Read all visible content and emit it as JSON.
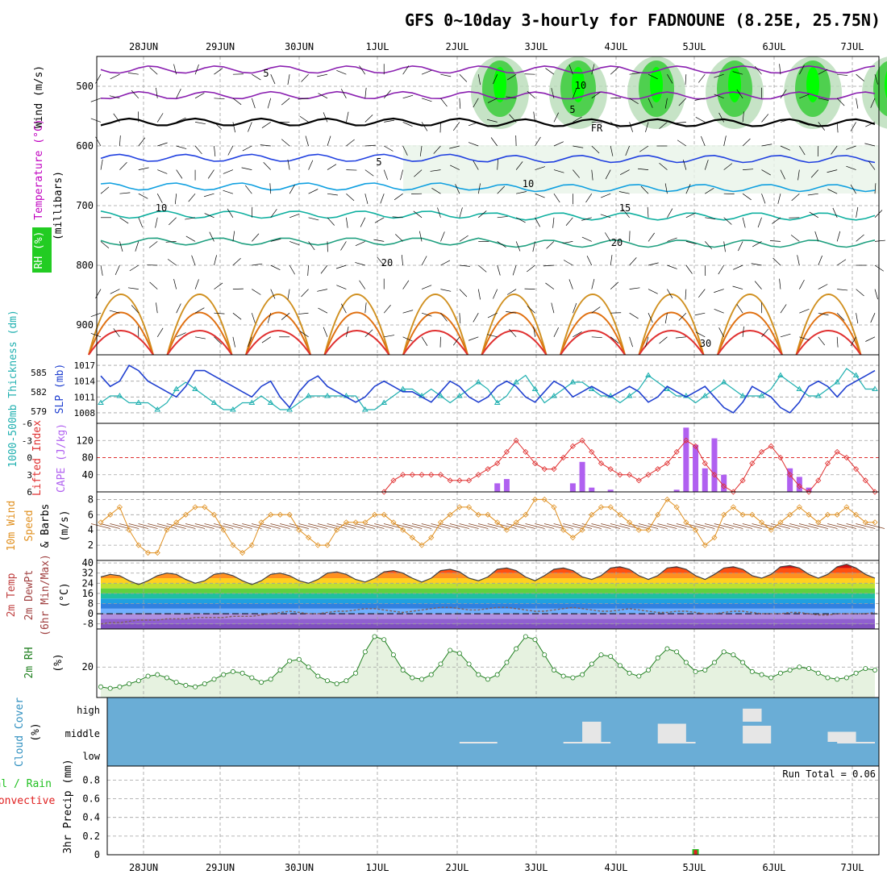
{
  "title": "GFS 0~10day 3-hourly for FADNOUNE (8.25E, 25.75N)",
  "colors": {
    "frame": "#000000",
    "grid": "#a0a0a0",
    "wind_label": "#000000",
    "temp_label": "#c000c0",
    "rh_label": "#00a000",
    "thickness": "#20b0b0",
    "slp": "#2040d0",
    "lifted_index": "#e03030",
    "cape": "#b060f0",
    "wind10m": "#e09020",
    "barb": "#804020",
    "rh2m": "#208020",
    "rh2m_fill": "#e6f2e0",
    "cloud_bg": "#6aadd6",
    "cloud_fill": "#e6e6e6",
    "precip_total": "#20c020",
    "precip_conv": "#e02020"
  },
  "chart_data": [
    {
      "type": "heatmap",
      "id": "upper-air",
      "y_axis_label": [
        "Wind (m/s)",
        "Temperature (°C)",
        "RH (%)"
      ],
      "y_axis_sublabel": "(millibars)",
      "yticks": [
        500,
        600,
        700,
        800,
        900
      ],
      "ylim": [
        450,
        950
      ],
      "date_labels": [
        "28JUN",
        "29JUN",
        "30JUN",
        "1JUL",
        "2JUL",
        "3JUL",
        "4JUL",
        "5JUL",
        "6JUL",
        "7JUL"
      ],
      "contour_labels": [
        "5",
        "10",
        "5",
        "FR",
        "5",
        "10",
        "10",
        "15",
        "20",
        "20",
        "30"
      ],
      "temperature_contours": [
        {
          "value": -5,
          "color": "#8a1fb0",
          "level": 472
        },
        {
          "value": -10,
          "color": "#8a1fb0",
          "level": 515
        },
        {
          "value": 0,
          "color": "#000000",
          "level": 560
        },
        {
          "value": 5,
          "color": "#2040e0",
          "level": 620
        },
        {
          "value": 10,
          "color": "#10a0e0",
          "level": 668
        },
        {
          "value": 15,
          "color": "#10b0a0",
          "level": 715
        },
        {
          "value": 20,
          "color": "#20a080",
          "level": 760
        }
      ]
    },
    {
      "type": "line",
      "id": "thickness-slp",
      "ylabel_left": "1000-500mb Thickness (dm)",
      "ylabel_right": "SLP (mb)",
      "thickness_ticks": [
        585,
        582,
        579
      ],
      "slp_ticks": [
        1017,
        1014,
        1011,
        1008
      ],
      "ylim_slp": [
        1006,
        1019
      ],
      "series": [
        {
          "name": "Thickness",
          "values": [
            580,
            581,
            581,
            580,
            580,
            580,
            579,
            580,
            582,
            583,
            582,
            581,
            580,
            579,
            579,
            580,
            580,
            581,
            580,
            579,
            579,
            580,
            581,
            581,
            581,
            581,
            581,
            581,
            579,
            579,
            580,
            581,
            582,
            582,
            581,
            582,
            581,
            580,
            581,
            582,
            583,
            582,
            580,
            581,
            583,
            584,
            582,
            580,
            581,
            582,
            583,
            583,
            582,
            581,
            581,
            580,
            581,
            582,
            584,
            583,
            582,
            581,
            581,
            580,
            581,
            582,
            583,
            582,
            581,
            581,
            581,
            582,
            584,
            583,
            582,
            581,
            581,
            582,
            583,
            585,
            584,
            582,
            582
          ]
        },
        {
          "name": "SLP",
          "values": [
            1015,
            1013,
            1014,
            1017,
            1016,
            1014,
            1013,
            1012,
            1011,
            1013,
            1016,
            1016,
            1015,
            1014,
            1013,
            1012,
            1011,
            1013,
            1014,
            1011,
            1009,
            1012,
            1014,
            1015,
            1013,
            1012,
            1011,
            1010,
            1011,
            1013,
            1014,
            1013,
            1012,
            1012,
            1011,
            1010,
            1012,
            1014,
            1013,
            1011,
            1010,
            1011,
            1013,
            1014,
            1013,
            1011,
            1010,
            1012,
            1014,
            1013,
            1011,
            1012,
            1013,
            1012,
            1011,
            1012,
            1013,
            1012,
            1010,
            1011,
            1013,
            1012,
            1011,
            1012,
            1013,
            1011,
            1009,
            1008,
            1010,
            1013,
            1012,
            1011,
            1009,
            1008,
            1010,
            1013,
            1014,
            1013,
            1011,
            1013,
            1014,
            1015,
            1016
          ]
        }
      ]
    },
    {
      "type": "bar",
      "id": "cape-li",
      "ylabel_left": "Lifted Index",
      "ylabel_right": "CAPE (J/kg)",
      "li_ticks": [
        -6,
        -3,
        0,
        3,
        6
      ],
      "cape_ticks": [
        120,
        80,
        40
      ],
      "ylim_cape": [
        0,
        160
      ],
      "li_values": [
        null,
        null,
        null,
        null,
        null,
        null,
        null,
        null,
        null,
        null,
        null,
        null,
        null,
        null,
        null,
        null,
        null,
        null,
        null,
        null,
        null,
        null,
        null,
        null,
        null,
        null,
        null,
        null,
        null,
        null,
        6,
        4,
        3,
        3,
        3,
        3,
        3,
        4,
        4,
        4,
        3,
        2,
        1,
        -1,
        -3,
        -1,
        1,
        2,
        2,
        0,
        -2,
        -3,
        -1,
        1,
        2,
        3,
        3,
        4,
        3,
        2,
        1,
        -1,
        -3,
        -2,
        1,
        3,
        5,
        6,
        4,
        1,
        -1,
        -2,
        0,
        3,
        5,
        6,
        4,
        1,
        -1,
        0,
        2,
        4,
        6
      ],
      "cape_values": [
        0,
        0,
        0,
        0,
        0,
        0,
        0,
        0,
        0,
        0,
        0,
        0,
        0,
        0,
        0,
        0,
        0,
        0,
        0,
        0,
        0,
        0,
        0,
        0,
        0,
        0,
        0,
        0,
        0,
        0,
        0,
        0,
        0,
        0,
        0,
        0,
        0,
        0,
        0,
        0,
        0,
        0,
        20,
        30,
        0,
        0,
        0,
        0,
        0,
        0,
        20,
        70,
        10,
        0,
        5,
        0,
        0,
        0,
        0,
        0,
        0,
        5,
        150,
        110,
        55,
        125,
        40,
        0,
        0,
        0,
        0,
        0,
        0,
        55,
        35,
        10,
        0,
        0,
        0,
        0,
        0,
        0,
        0
      ]
    },
    {
      "type": "line",
      "id": "wind10m",
      "ylabel": "10m Wind Speed & Barbs (m/s)",
      "yticks": [
        8,
        6,
        4,
        2
      ],
      "ylim": [
        0,
        9
      ],
      "values": [
        5,
        6,
        7,
        4,
        2,
        1,
        1,
        4,
        5,
        6,
        7,
        7,
        6,
        4,
        2,
        1,
        2,
        5,
        6,
        6,
        6,
        4,
        3,
        2,
        2,
        4,
        5,
        5,
        5,
        6,
        6,
        5,
        4,
        3,
        2,
        3,
        5,
        6,
        7,
        7,
        6,
        6,
        5,
        4,
        5,
        6,
        8,
        8,
        7,
        4,
        3,
        4,
        6,
        7,
        7,
        6,
        5,
        4,
        4,
        6,
        8,
        7,
        5,
        4,
        2,
        3,
        6,
        7,
        6,
        6,
        5,
        4,
        5,
        6,
        7,
        6,
        5,
        6,
        6,
        7,
        6,
        5,
        5
      ]
    },
    {
      "type": "area",
      "id": "temperature",
      "ylabel": "2m Temp 2m DewPt (6hr Min/Max) (°C)",
      "yticks": [
        40,
        32,
        24,
        16,
        8,
        0,
        -8
      ],
      "ylim": [
        -12,
        42
      ],
      "temp_values": [
        29,
        31,
        30,
        26,
        23,
        26,
        30,
        32,
        31,
        27,
        24,
        26,
        31,
        32,
        30,
        26,
        23,
        26,
        31,
        32,
        30,
        26,
        24,
        27,
        32,
        33,
        31,
        27,
        25,
        28,
        33,
        34,
        32,
        28,
        25,
        28,
        34,
        35,
        33,
        28,
        26,
        29,
        35,
        36,
        34,
        29,
        26,
        30,
        35,
        36,
        34,
        29,
        27,
        30,
        36,
        37,
        35,
        30,
        27,
        30,
        36,
        37,
        35,
        30,
        27,
        31,
        36,
        37,
        35,
        30,
        28,
        31,
        37,
        38,
        36,
        31,
        28,
        31,
        37,
        39,
        36,
        31,
        28
      ],
      "dew_values": [
        -8,
        -7,
        -7,
        -6,
        -5,
        -5,
        -5,
        -4,
        -4,
        -4,
        -3,
        -3,
        -3,
        -3,
        -2,
        -2,
        -2,
        -1,
        0,
        1,
        2,
        1,
        0,
        0,
        1,
        2,
        2,
        3,
        4,
        4,
        3,
        2,
        1,
        2,
        3,
        4,
        5,
        5,
        4,
        3,
        3,
        4,
        5,
        5,
        4,
        3,
        2,
        2,
        3,
        4,
        5,
        4,
        3,
        2,
        2,
        3,
        4,
        3,
        2,
        1,
        1,
        2,
        2,
        1,
        0,
        0,
        1,
        2,
        2,
        1,
        0,
        0,
        0,
        1,
        1,
        0,
        -1,
        -1,
        0,
        0,
        0,
        0,
        1
      ]
    },
    {
      "type": "line",
      "id": "rh2m",
      "ylabel": "2m RH (%)",
      "yticks": [
        20
      ],
      "ylim": [
        0,
        45
      ],
      "values": [
        7,
        6,
        7,
        9,
        11,
        14,
        15,
        13,
        10,
        8,
        7,
        9,
        12,
        15,
        17,
        16,
        13,
        10,
        12,
        18,
        24,
        25,
        20,
        14,
        11,
        9,
        11,
        16,
        30,
        40,
        38,
        28,
        18,
        13,
        12,
        15,
        22,
        31,
        29,
        22,
        15,
        12,
        15,
        23,
        32,
        40,
        38,
        28,
        18,
        14,
        13,
        15,
        22,
        28,
        27,
        21,
        16,
        14,
        18,
        26,
        32,
        30,
        23,
        17,
        18,
        23,
        30,
        28,
        23,
        17,
        15,
        13,
        16,
        18,
        20,
        19,
        16,
        13,
        12,
        13,
        16,
        19,
        18
      ]
    },
    {
      "type": "area",
      "id": "cloud-cover",
      "ylabel": "Cloud Cover (%)",
      "levels": [
        "high",
        "middle",
        "low"
      ],
      "layers": [
        {
          "level": "low",
          "blocks": [
            [
              38,
              42,
              0.3
            ],
            [
              49,
              54,
              0.4
            ],
            [
              59,
              63,
              0.4
            ],
            [
              68,
              71,
              0.4
            ],
            [
              78,
              82,
              0.3
            ]
          ]
        },
        {
          "level": "middle",
          "blocks": [
            [
              51,
              53,
              1.0
            ],
            [
              59,
              62,
              0.9
            ],
            [
              68,
              71,
              0.8
            ],
            [
              77,
              80,
              0.5
            ]
          ]
        },
        {
          "level": "high",
          "blocks": [
            [
              68,
              70,
              0.6
            ]
          ]
        }
      ]
    },
    {
      "type": "bar",
      "id": "precip",
      "ylabel": "3hr Precip (mm)",
      "legend": [
        "Total / Rain",
        "Convective"
      ],
      "run_total_text": "Run Total = 0.06",
      "yticks": [
        0.8,
        0.6,
        0.4,
        0.2,
        0
      ],
      "ylim": [
        0,
        0.95
      ],
      "y_label_values": [
        "0",
        "0.2",
        "0.4",
        "0.6",
        "0.8"
      ],
      "total_values": {
        "63": 0.06
      },
      "convective_values": {
        "63": 0.05
      }
    }
  ]
}
